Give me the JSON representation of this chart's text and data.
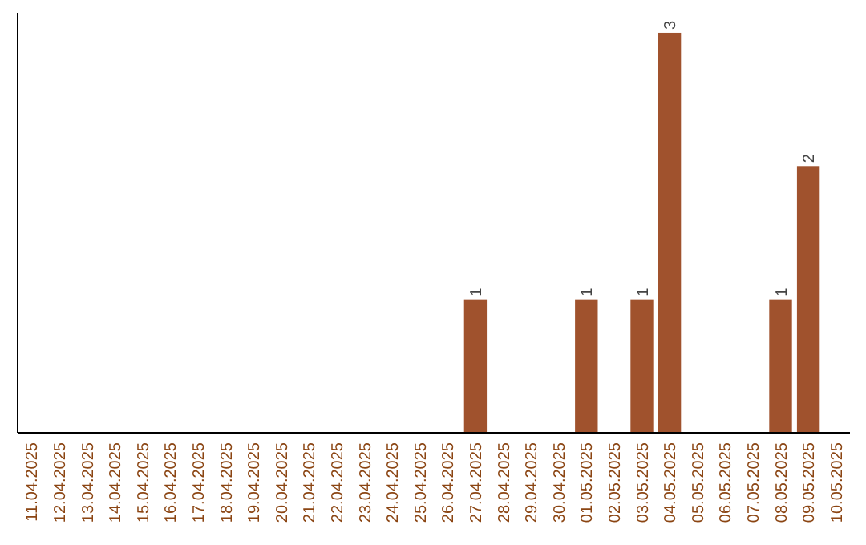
{
  "chart_data": {
    "type": "bar",
    "categories": [
      "11.04.2025",
      "12.04.2025",
      "13.04.2025",
      "14.04.2025",
      "15.04.2025",
      "16.04.2025",
      "17.04.2025",
      "18.04.2025",
      "19.04.2025",
      "20.04.2025",
      "21.04.2025",
      "22.04.2025",
      "23.04.2025",
      "24.04.2025",
      "25.04.2025",
      "26.04.2025",
      "27.04.2025",
      "28.04.2025",
      "29.04.2025",
      "30.04.2025",
      "01.05.2025",
      "02.05.2025",
      "03.05.2025",
      "04.05.2025",
      "05.05.2025",
      "06.05.2025",
      "07.05.2025",
      "08.05.2025",
      "09.05.2025",
      "10.05.2025"
    ],
    "values": [
      null,
      null,
      null,
      null,
      null,
      null,
      null,
      null,
      null,
      null,
      null,
      null,
      null,
      null,
      null,
      null,
      1,
      null,
      null,
      null,
      1,
      null,
      1,
      3,
      null,
      null,
      null,
      1,
      2,
      null
    ],
    "data_labels": true,
    "color": "#a0522d",
    "tick_labels": "x"
  }
}
